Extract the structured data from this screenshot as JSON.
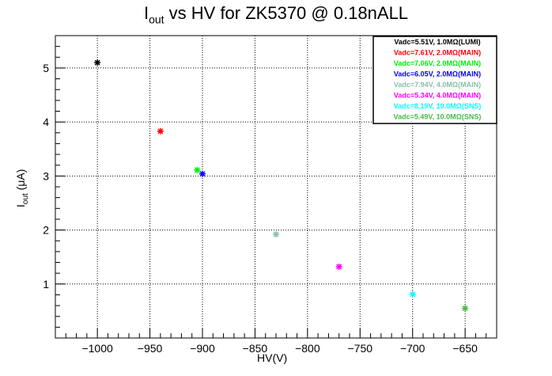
{
  "title": {
    "main": "I",
    "sub": "out",
    "rest": " vs HV for ZK5370 @ 0.18nALL"
  },
  "axes": {
    "ylabel_main": "I",
    "ylabel_sub": "out",
    "ylabel_rest": " (μA)",
    "xlabel": "HV(V)"
  },
  "chart_data": {
    "type": "scatter",
    "title": "I_out vs HV for ZK5370 @ 0.18nALL",
    "xlabel": "HV(V)",
    "ylabel": "I_out (μA)",
    "xlim": [
      -1040,
      -620
    ],
    "ylim": [
      0,
      5.6
    ],
    "xticks": [
      -1000,
      -950,
      -900,
      -850,
      -800,
      -750,
      -700,
      -650
    ],
    "xtick_labels": [
      "−1000",
      "−950",
      "−900",
      "−850",
      "−800",
      "−750",
      "−700",
      "−650"
    ],
    "yticks": [
      1,
      2,
      3,
      4,
      5
    ],
    "ytick_labels": [
      "1",
      "2",
      "3",
      "4",
      "5"
    ],
    "grid": true,
    "legend_position": "top-right",
    "series": [
      {
        "name": "Vadc=5.51V, 1.0MΩ(LUMI)",
        "color": "#000000",
        "x": [
          -1000
        ],
        "y": [
          5.1
        ]
      },
      {
        "name": "Vadc=7.61V, 2.0MΩ(MAIN)",
        "color": "#ff0000",
        "x": [
          -940
        ],
        "y": [
          3.83
        ]
      },
      {
        "name": "Vadc=7.06V, 2.0MΩ(MAIN)",
        "color": "#00ee00",
        "x": [
          -905
        ],
        "y": [
          3.11
        ]
      },
      {
        "name": "Vadc=6.05V, 2.0MΩ(MAIN)",
        "color": "#0000ff",
        "x": [
          -900
        ],
        "y": [
          3.04
        ]
      },
      {
        "name": "Vadc=7.94V, 4.0MΩ(MAIN)",
        "color": "#88c0a8",
        "x": [
          -830
        ],
        "y": [
          1.92
        ]
      },
      {
        "name": "Vadc=5.34V, 4.0MΩ(MAIN)",
        "color": "#ff00ff",
        "x": [
          -770
        ],
        "y": [
          1.32
        ]
      },
      {
        "name": "Vadc=8.19V, 10.0MΩ(SNS)",
        "color": "#00ffff",
        "x": [
          -700
        ],
        "y": [
          0.81
        ]
      },
      {
        "name": "Vadc=5.49V, 10.0MΩ(SNS)",
        "color": "#44bb44",
        "x": [
          -650
        ],
        "y": [
          0.55
        ]
      }
    ]
  }
}
